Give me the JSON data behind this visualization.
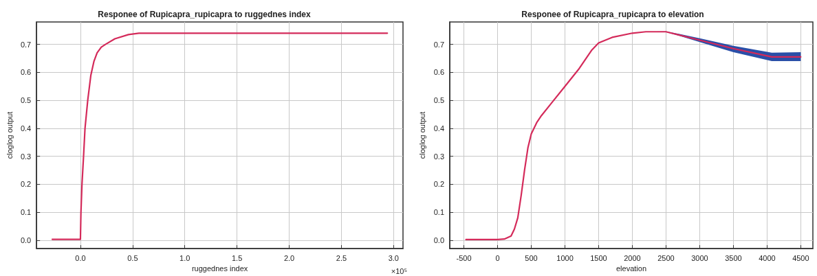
{
  "chart_data": [
    {
      "type": "line",
      "title": "Responee of Rupicapra_rupicapra to ruggednes index",
      "xlabel": "ruggednes index",
      "ylabel": "cloglog output",
      "annotations": [
        "×10⁵"
      ],
      "grid": true,
      "marker": "none",
      "xlim": [
        -0.42,
        3.09
      ],
      "xticks": [
        {
          "value": 0,
          "label": "0.0"
        },
        0.5,
        {
          "value": 1,
          "label": "1.0"
        },
        1.5,
        {
          "value": 2,
          "label": "2.0"
        },
        2.5,
        {
          "value": 3,
          "label": "3.0"
        }
      ],
      "ylim": [
        -0.03,
        0.78
      ],
      "yticks": [
        {
          "value": 0,
          "label": "0.0"
        },
        0.1,
        0.2,
        0.3,
        0.4,
        0.5,
        0.6,
        0.7
      ],
      "series": [
        {
          "color": "#d42a5a",
          "x": [
            -0.27,
            0,
            0.005,
            0.015,
            0.03,
            0.044,
            0.07,
            0.1,
            0.13,
            0.16,
            0.2,
            0.24,
            0.33,
            0.46,
            0.56,
            0.75,
            2.94
          ],
          "values": [
            0.003,
            0.003,
            0.1,
            0.2,
            0.3,
            0.4,
            0.5,
            0.59,
            0.64,
            0.67,
            0.69,
            0.7,
            0.72,
            0.735,
            0.74,
            0.74,
            0.74
          ]
        }
      ]
    },
    {
      "type": "line",
      "title": "Responee of Rupicapra_rupicapra to elevation",
      "xlabel": "elevation",
      "ylabel": "cloglog output",
      "grid": true,
      "marker": "none",
      "xlim": [
        -710,
        4680
      ],
      "xticks": [
        -500,
        0,
        500,
        1000,
        1500,
        2000,
        2500,
        3000,
        3500,
        4000,
        4500
      ],
      "ylim": [
        -0.03,
        0.78
      ],
      "yticks": [
        {
          "value": 0,
          "label": "0.0"
        },
        0.1,
        0.2,
        0.3,
        0.4,
        0.5,
        0.6,
        0.7
      ],
      "series": [
        {
          "color": "#d42a5a",
          "x": [
            -470,
            0,
            100,
            200,
            250,
            300,
            350,
            400,
            450,
            500,
            580,
            650,
            800,
            1000,
            1200,
            1400,
            1500,
            1700,
            2000,
            2200,
            2500,
            2700,
            3000,
            3500,
            4070,
            4500
          ],
          "values": [
            0.002,
            0.002,
            0.004,
            0.015,
            0.04,
            0.08,
            0.16,
            0.25,
            0.33,
            0.38,
            0.42,
            0.445,
            0.49,
            0.55,
            0.61,
            0.68,
            0.705,
            0.725,
            0.74,
            0.745,
            0.745,
            0.733,
            0.715,
            0.685,
            0.655,
            0.655
          ],
          "lower": [
            0.002,
            0.002,
            0.004,
            0.015,
            0.04,
            0.08,
            0.16,
            0.25,
            0.33,
            0.38,
            0.42,
            0.445,
            0.49,
            0.55,
            0.61,
            0.68,
            0.705,
            0.725,
            0.74,
            0.745,
            0.744,
            0.73,
            0.708,
            0.672,
            0.64,
            0.64
          ],
          "upper": [
            0.002,
            0.002,
            0.004,
            0.015,
            0.04,
            0.08,
            0.16,
            0.25,
            0.33,
            0.38,
            0.42,
            0.445,
            0.49,
            0.55,
            0.61,
            0.68,
            0.705,
            0.725,
            0.74,
            0.745,
            0.746,
            0.737,
            0.722,
            0.695,
            0.67,
            0.672
          ]
        }
      ]
    }
  ]
}
